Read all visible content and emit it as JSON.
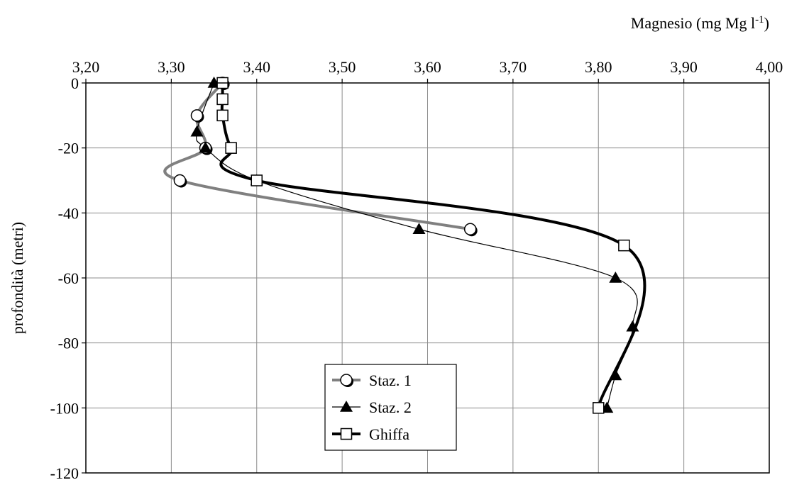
{
  "chart_data": {
    "type": "line",
    "title": "",
    "xlabel": "Magnesio (mg Mg l",
    "xlabel_sup": "-1",
    "xlabel_suffix": ")",
    "ylabel": "profondità (metri)",
    "xlim": [
      3.2,
      4.0
    ],
    "ylim": [
      -120,
      0
    ],
    "x_ticks": [
      3.2,
      3.3,
      3.4,
      3.5,
      3.6,
      3.7,
      3.8,
      3.9,
      4.0
    ],
    "x_tick_labels": [
      "3,20",
      "3,30",
      "3,40",
      "3,50",
      "3,60",
      "3,70",
      "3,80",
      "3,90",
      "4,00"
    ],
    "y_ticks": [
      0,
      -20,
      -40,
      -60,
      -80,
      -100,
      -120
    ],
    "y_tick_labels": [
      "0",
      "-20",
      "-40",
      "-60",
      "-80",
      "-100",
      "-120"
    ],
    "x_axis_position": "top",
    "grid": true,
    "legend_position": "bottom-center",
    "series": [
      {
        "name": "Staz. 1",
        "marker": "circle",
        "color": "#808080",
        "line_width": 4,
        "points": [
          [
            3.36,
            0
          ],
          [
            3.33,
            -10
          ],
          [
            3.34,
            -20
          ],
          [
            3.31,
            -30
          ],
          [
            3.65,
            -45
          ]
        ]
      },
      {
        "name": "Staz. 2",
        "marker": "triangle",
        "color": "#000000",
        "line_width": 1.2,
        "points": [
          [
            3.35,
            0
          ],
          [
            3.33,
            -15
          ],
          [
            3.34,
            -20
          ],
          [
            3.4,
            -30
          ],
          [
            3.59,
            -45
          ],
          [
            3.82,
            -60
          ],
          [
            3.84,
            -75
          ],
          [
            3.82,
            -90
          ],
          [
            3.81,
            -100
          ]
        ]
      },
      {
        "name": "Ghiffa",
        "marker": "square",
        "color": "#000000",
        "line_width": 4,
        "points": [
          [
            3.36,
            0
          ],
          [
            3.36,
            -5
          ],
          [
            3.36,
            -10
          ],
          [
            3.37,
            -20
          ],
          [
            3.4,
            -30
          ],
          [
            3.83,
            -50
          ],
          [
            3.8,
            -100
          ]
        ]
      }
    ]
  }
}
